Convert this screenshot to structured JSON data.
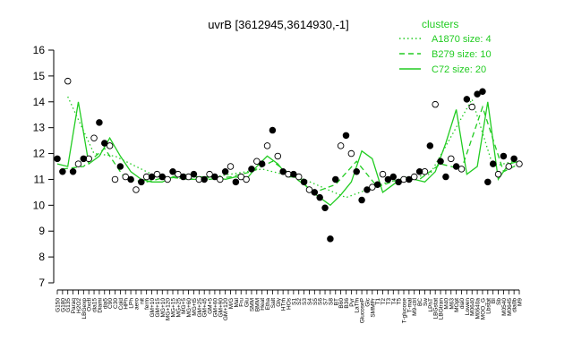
{
  "chart_data": {
    "type": "line",
    "title": "uvrB [3612945,3614930,-1]",
    "xlabel": "",
    "ylabel": "",
    "ylim": [
      7,
      16
    ],
    "yticks": [
      7,
      8,
      9,
      10,
      11,
      12,
      13,
      14,
      15,
      16
    ],
    "grid": false,
    "legend_position": "top-right",
    "legend": {
      "title": "clusters",
      "entries": [
        {
          "label": "A1870 size: 4",
          "style": "dotted"
        },
        {
          "label": "B279 size: 10",
          "style": "dashed"
        },
        {
          "label": "C72 size: 20",
          "style": "solid"
        }
      ]
    },
    "x_tick_labels": [
      "G150",
      "G180",
      "G135",
      "Paraq",
      "H2O2",
      "LBGexp",
      "Oxctl",
      "dia15",
      "Diami",
      "dia5",
      "C90",
      "C30",
      "Cold",
      "HPh",
      "LPh",
      "aero",
      "nit",
      "ferm",
      "GM+10",
      "GM+15",
      "MG+10",
      "MG+120",
      "MG+15",
      "MG+25",
      "MG+5",
      "MG+60",
      "MG+t5",
      "GM+25",
      "GM+45",
      "GM+5",
      "GM+60",
      "GM+90",
      "GM+120",
      "M/G",
      "Mal",
      "Fru",
      "Glu",
      "SMM",
      "BMM",
      "Heat",
      "Etha",
      "Salt",
      "Gly",
      "HTm",
      "HOs",
      "S1",
      "S2",
      "S3",
      "S4",
      "S5",
      "S6",
      "S7",
      "S8",
      "BT",
      "B60",
      "B36",
      "Pyr",
      "LaTm",
      "GlucoseP",
      "Glc",
      "SMMPr",
      "T1",
      "T2",
      "T3",
      "T4",
      "T5",
      "T-glucose",
      "T-mal",
      "M9-ctrl",
      "BC",
      "Sw",
      "LPhT",
      "LBGstat",
      "LBGtran",
      "M40",
      "M63",
      "MOpt",
      "dia0",
      "Lowen",
      "M0640",
      "M0640a",
      "MOO_G",
      "Lbstat",
      "BI",
      "Sb",
      "M0540",
      "M0645",
      "dia0b",
      "M9"
    ],
    "series": [
      {
        "style": "solid",
        "x": [
          1,
          3,
          5,
          7,
          9,
          11,
          13,
          15,
          17,
          19,
          21,
          23,
          25,
          27,
          29,
          31,
          33,
          35,
          37,
          39,
          41,
          43,
          45,
          47,
          49,
          51,
          53,
          55,
          57,
          59,
          61,
          63,
          65,
          67,
          69,
          71,
          73,
          75,
          77,
          79,
          81,
          83,
          85,
          87,
          89
        ],
        "y": [
          11.6,
          11.5,
          14.0,
          11.6,
          11.9,
          12.6,
          11.9,
          11.3,
          11.0,
          10.9,
          10.9,
          11.1,
          11.2,
          11.1,
          11.1,
          11.1,
          11.0,
          11.1,
          11.0,
          11.5,
          11.9,
          11.6,
          11.1,
          11.1,
          10.6,
          10.3,
          10.0,
          10.4,
          10.9,
          12.1,
          11.8,
          10.5,
          10.8,
          11.1,
          11.0,
          10.9,
          11.3,
          12.4,
          13.7,
          11.2,
          11.5,
          14.0,
          11.0,
          11.6,
          11.7
        ]
      },
      {
        "style": "dashed",
        "x": [
          2,
          6,
          10,
          14,
          18,
          22,
          26,
          30,
          34,
          38,
          42,
          46,
          50,
          54,
          58,
          62,
          66,
          70,
          74,
          78,
          82,
          86,
          89
        ],
        "y": [
          11.4,
          11.5,
          12.2,
          11.0,
          10.9,
          11.1,
          11.0,
          11.0,
          11.1,
          11.3,
          11.7,
          11.1,
          10.5,
          10.8,
          11.7,
          10.7,
          11.0,
          11.0,
          11.6,
          11.4,
          13.8,
          11.3,
          11.6
        ]
      },
      {
        "style": "dotted",
        "x": [
          3,
          8,
          12,
          20,
          28,
          40,
          48,
          56,
          64,
          72,
          80,
          84,
          88
        ],
        "y": [
          14.2,
          12.0,
          11.9,
          11.1,
          11.0,
          11.4,
          11.0,
          10.3,
          10.9,
          11.2,
          14.1,
          11.5,
          11.7
        ]
      }
    ],
    "points_filled": {
      "x": [
        1,
        2,
        4,
        6,
        9,
        10,
        13,
        15,
        17,
        19,
        21,
        23,
        25,
        27,
        29,
        31,
        33,
        35,
        38,
        40,
        42,
        44,
        46,
        48,
        50,
        51,
        52,
        53,
        54,
        56,
        58,
        59,
        60,
        62,
        64,
        65,
        66,
        68,
        70,
        72,
        74,
        75,
        77,
        79,
        81,
        82,
        83,
        84,
        86,
        88
      ],
      "y": [
        11.8,
        11.3,
        11.3,
        11.8,
        13.2,
        12.4,
        11.5,
        11.0,
        10.9,
        11.1,
        11.1,
        11.3,
        11.1,
        11.2,
        11.0,
        11.1,
        11.3,
        10.9,
        11.4,
        11.6,
        12.9,
        11.3,
        11.2,
        10.9,
        10.5,
        10.3,
        9.9,
        8.7,
        11.0,
        12.7,
        11.3,
        10.2,
        10.6,
        10.8,
        11.0,
        11.1,
        10.9,
        11.0,
        11.3,
        12.3,
        11.7,
        11.1,
        11.5,
        14.1,
        14.3,
        14.4,
        10.9,
        11.6,
        11.9,
        11.8
      ]
    },
    "points_open": {
      "x": [
        3,
        5,
        7,
        8,
        11,
        12,
        14,
        16,
        18,
        20,
        22,
        24,
        26,
        28,
        30,
        32,
        34,
        36,
        37,
        39,
        41,
        43,
        45,
        47,
        49,
        55,
        57,
        61,
        63,
        67,
        69,
        71,
        73,
        76,
        78,
        80,
        85,
        87,
        89
      ],
      "y": [
        14.8,
        11.6,
        11.8,
        12.6,
        12.3,
        11.0,
        11.1,
        10.6,
        11.1,
        11.2,
        11.0,
        11.2,
        11.1,
        11.0,
        11.2,
        11.0,
        11.5,
        11.1,
        11.0,
        11.7,
        12.3,
        11.9,
        11.2,
        11.1,
        10.6,
        12.3,
        12.0,
        10.7,
        11.2,
        11.0,
        11.1,
        11.3,
        13.9,
        11.8,
        11.4,
        13.8,
        11.2,
        11.5,
        11.6
      ]
    }
  }
}
